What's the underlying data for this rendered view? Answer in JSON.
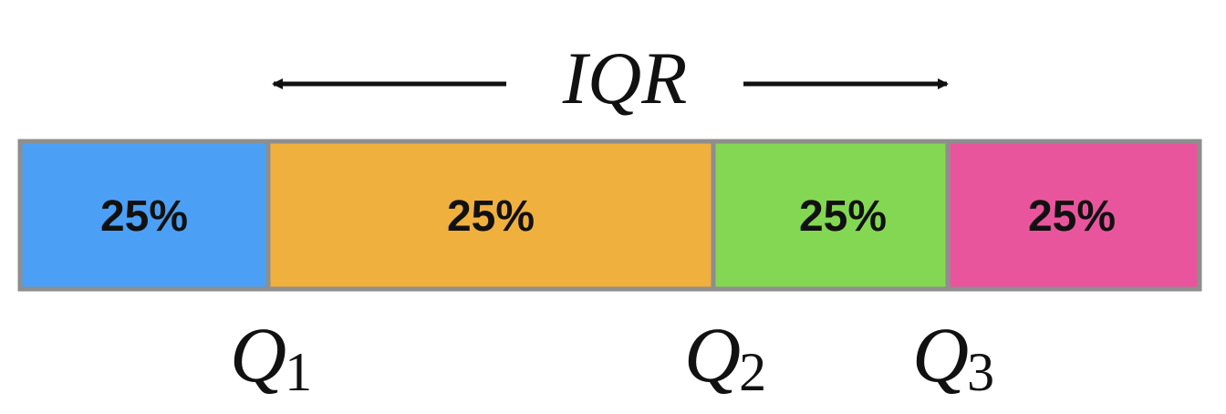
{
  "diagram": {
    "iqr_label": "IQR",
    "segments": [
      {
        "label": "25%",
        "color": "#4BA0F5",
        "fraction": 0.25
      },
      {
        "label": "25%",
        "color": "#F0B03E",
        "fraction": 0.25
      },
      {
        "label": "25%",
        "color": "#84D752",
        "fraction": 0.25
      },
      {
        "label": "25%",
        "color": "#E9559D",
        "fraction": 0.25
      }
    ],
    "segment_border_color": "#8E8E8E",
    "quartiles": [
      {
        "letter": "Q",
        "subscript": "1"
      },
      {
        "letter": "Q",
        "subscript": "2"
      },
      {
        "letter": "Q",
        "subscript": "3"
      }
    ]
  }
}
